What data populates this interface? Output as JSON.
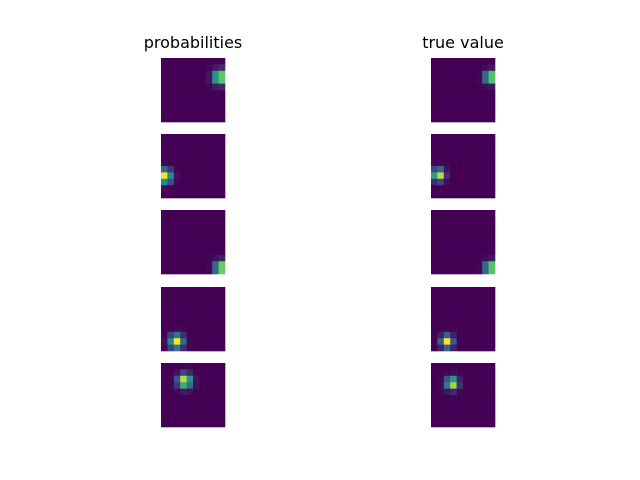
{
  "chart_data": {
    "type": "heatmap",
    "column_titles": [
      "probabilities",
      "true value"
    ],
    "grid_size": 10,
    "colormap": [
      "#440154",
      "#3b528b",
      "#21918c",
      "#5ec962",
      "#fde725"
    ],
    "axes_visible": false,
    "panels": [
      {
        "row": 0,
        "probabilities": {
          "center": [
            9.2,
            3.0
          ],
          "sigma": 0.75,
          "peak": 1.0
        },
        "true_value": {
          "center": [
            9.3,
            3.0
          ],
          "sigma": 0.65,
          "peak": 1.0
        }
      },
      {
        "row": 1,
        "probabilities": {
          "center": [
            0.6,
            6.6
          ],
          "sigma": 0.75,
          "peak": 1.0
        },
        "true_value": {
          "center": [
            1.2,
            6.4
          ],
          "sigma": 0.65,
          "peak": 1.0
        }
      },
      {
        "row": 2,
        "probabilities": {
          "center": [
            9.4,
            9.0
          ],
          "sigma": 0.7,
          "peak": 1.0
        },
        "true_value": {
          "center": [
            9.3,
            9.0
          ],
          "sigma": 0.65,
          "peak": 1.0
        }
      },
      {
        "row": 3,
        "probabilities": {
          "center": [
            2.4,
            8.5
          ],
          "sigma": 0.75,
          "peak": 1.0
        },
        "true_value": {
          "center": [
            2.5,
            8.5
          ],
          "sigma": 0.65,
          "peak": 1.0
        }
      },
      {
        "row": 4,
        "probabilities": {
          "center": [
            3.7,
            2.8
          ],
          "sigma": 0.75,
          "peak": 1.0
        },
        "true_value": {
          "center": [
            3.3,
            3.2
          ],
          "sigma": 0.65,
          "peak": 1.0
        }
      }
    ]
  }
}
